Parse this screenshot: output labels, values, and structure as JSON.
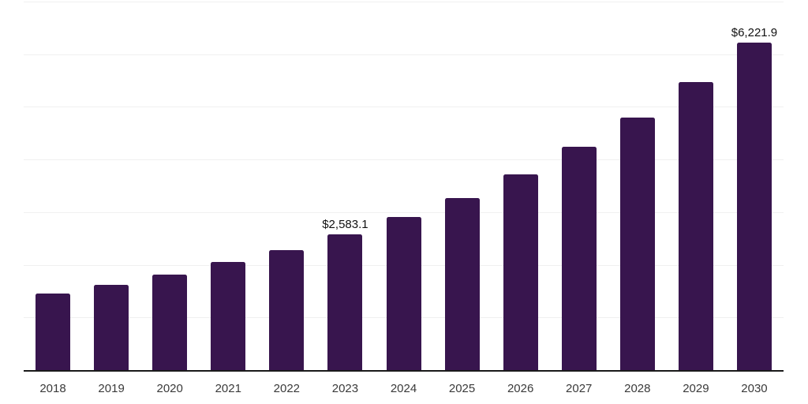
{
  "chart_data": {
    "type": "bar",
    "title": "",
    "xlabel": "",
    "ylabel": "",
    "categories": [
      "2018",
      "2019",
      "2020",
      "2021",
      "2022",
      "2023",
      "2024",
      "2025",
      "2026",
      "2027",
      "2028",
      "2029",
      "2030"
    ],
    "values": [
      1455,
      1620,
      1820,
      2055,
      2285,
      2583.1,
      2915,
      3275,
      3715,
      4235,
      4800,
      5475,
      6221.9
    ],
    "data_labels": [
      {
        "category": "2023",
        "text": "$2,583.1"
      },
      {
        "category": "2030",
        "text": "$6,221.9"
      }
    ],
    "ylim": [
      0,
      7000
    ],
    "grid_step": 1000,
    "grid": true,
    "legend": "none",
    "colors": {
      "bar": "#38154E",
      "axis_line": "#1A1A1A",
      "gridline": "#F0F0F0",
      "tick_label": "#3A3A3A",
      "data_label": "#111111",
      "background": "#FFFFFF"
    }
  }
}
